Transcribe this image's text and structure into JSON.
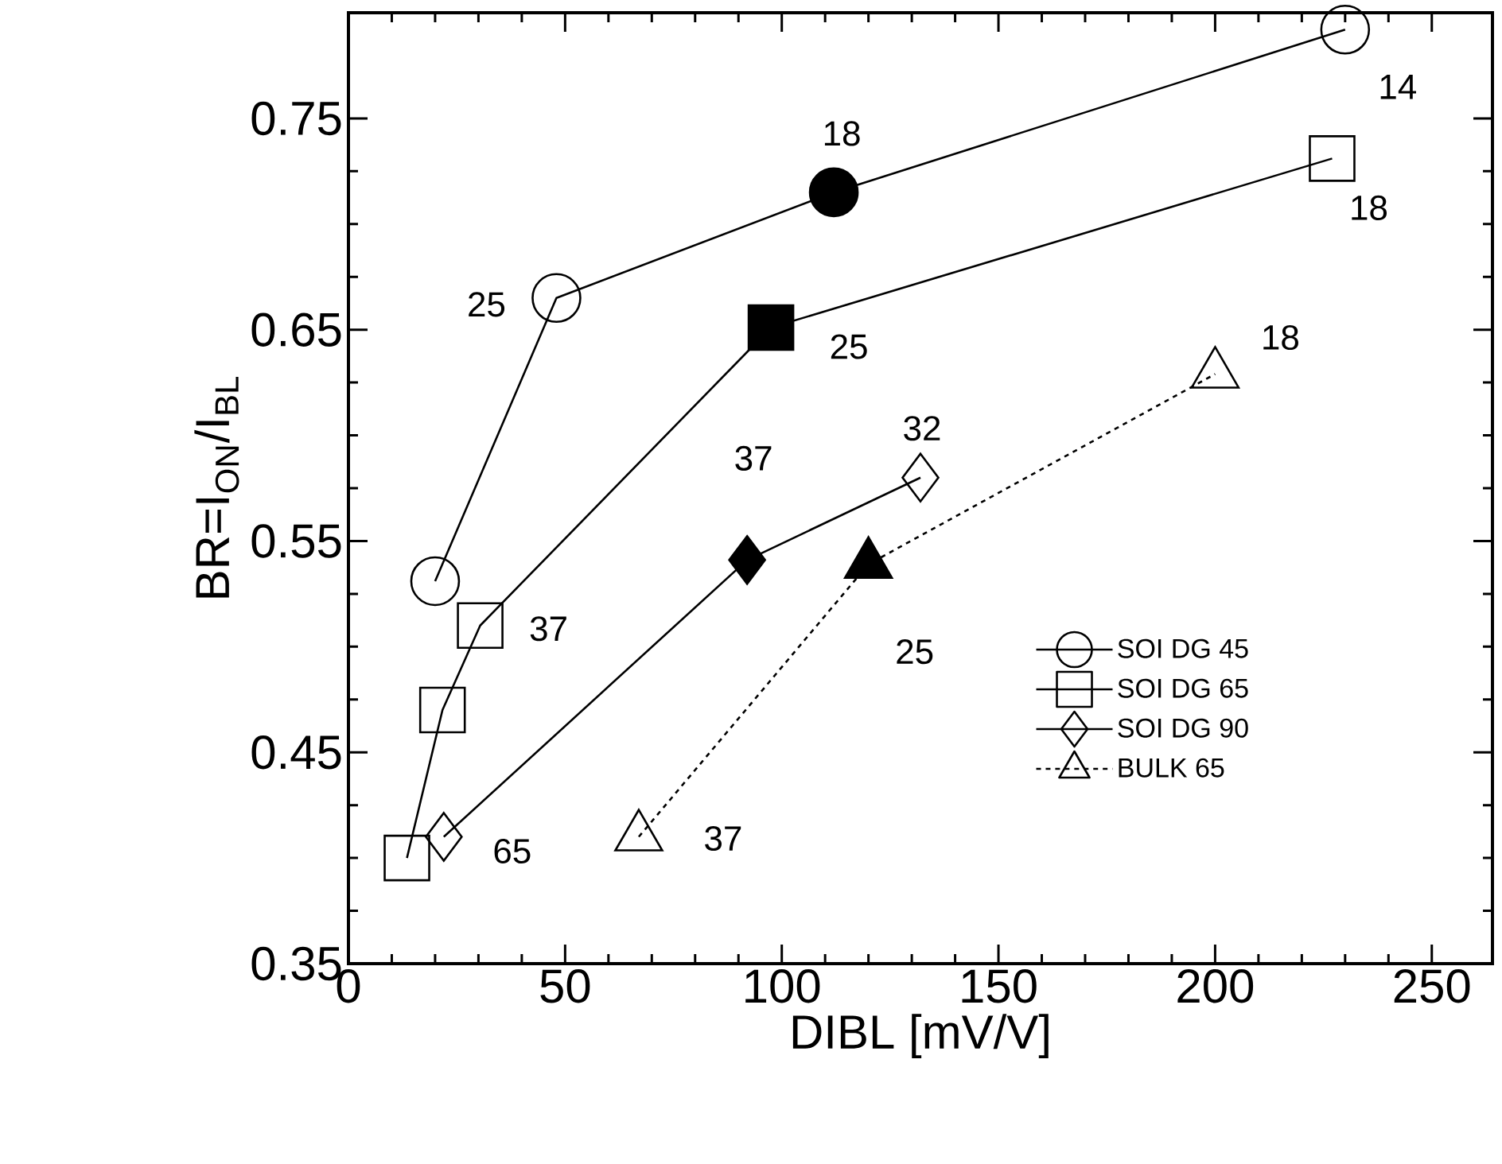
{
  "chart_data": {
    "type": "line",
    "xlabel": "DIBL [mV/V]",
    "ylabel": "BR=I$_{ON}$/I$_{BL}$",
    "xlim": [
      0,
      264
    ],
    "ylim": [
      0.35,
      0.8
    ],
    "xticks": [
      0,
      50,
      100,
      150,
      200,
      250
    ],
    "yticks": [
      0.35,
      0.45,
      0.55,
      0.65,
      0.75
    ],
    "legend": "bottom right",
    "series": [
      {
        "name": "SOI DG 45",
        "color": "#000000",
        "marker": "circle",
        "line_style": "solid",
        "x": [
          20,
          48,
          112,
          230
        ],
        "values": [
          0.531,
          0.665,
          0.715,
          0.792
        ]
      },
      {
        "name": "SOI DG 65",
        "color": "#000000",
        "marker": "square",
        "line_style": "solid",
        "x": [
          13.5,
          21.7,
          30.4,
          97.5,
          227
        ],
        "values": [
          0.4,
          0.47,
          0.51,
          0.651,
          0.731
        ]
      },
      {
        "name": "SOI DG 90",
        "color": "#000000",
        "marker": "diamond",
        "line_style": "solid",
        "x": [
          22,
          92,
          132
        ],
        "values": [
          0.41,
          0.541,
          0.58
        ]
      },
      {
        "name": "BULK 65",
        "color": "#000000",
        "marker": "triangle",
        "line_style": "dashed",
        "x": [
          67,
          120,
          200
        ],
        "values": [
          0.41,
          0.539,
          0.629
        ]
      },
      {
        "type": "scatter",
        "color": "#000000",
        "marker": "circle",
        "x": [
          112
        ],
        "values": [
          0.715
        ]
      },
      {
        "type": "scatter",
        "color": "#000000",
        "marker": "square",
        "x": [
          97.5
        ],
        "values": [
          0.651
        ]
      },
      {
        "type": "scatter",
        "color": "#000000",
        "marker": "diamond",
        "x": [
          92
        ],
        "values": [
          0.541
        ]
      },
      {
        "type": "scatter",
        "color": "#000000",
        "marker": "triangle",
        "x": [
          120
        ],
        "values": [
          0.539
        ]
      }
    ],
    "annotations": [
      {
        "text": "14",
        "x": 230,
        "y": 0.792
      },
      {
        "text": "18",
        "x": 112,
        "y": 0.715
      },
      {
        "text": "25",
        "x": 48,
        "y": 0.665
      },
      {
        "text": "18",
        "x": 227,
        "y": 0.731
      },
      {
        "text": "25",
        "x": 97.5,
        "y": 0.651
      },
      {
        "text": "37",
        "x": 30.4,
        "y": 0.51
      },
      {
        "text": "65",
        "x": 22,
        "y": 0.41
      },
      {
        "text": "37",
        "x": 92,
        "y": 0.541
      },
      {
        "text": "32",
        "x": 132,
        "y": 0.58
      },
      {
        "text": "37",
        "x": 67,
        "y": 0.41
      },
      {
        "text": "25",
        "x": 120,
        "y": 0.539
      },
      {
        "text": "18",
        "x": 200,
        "y": 0.629
      }
    ]
  }
}
